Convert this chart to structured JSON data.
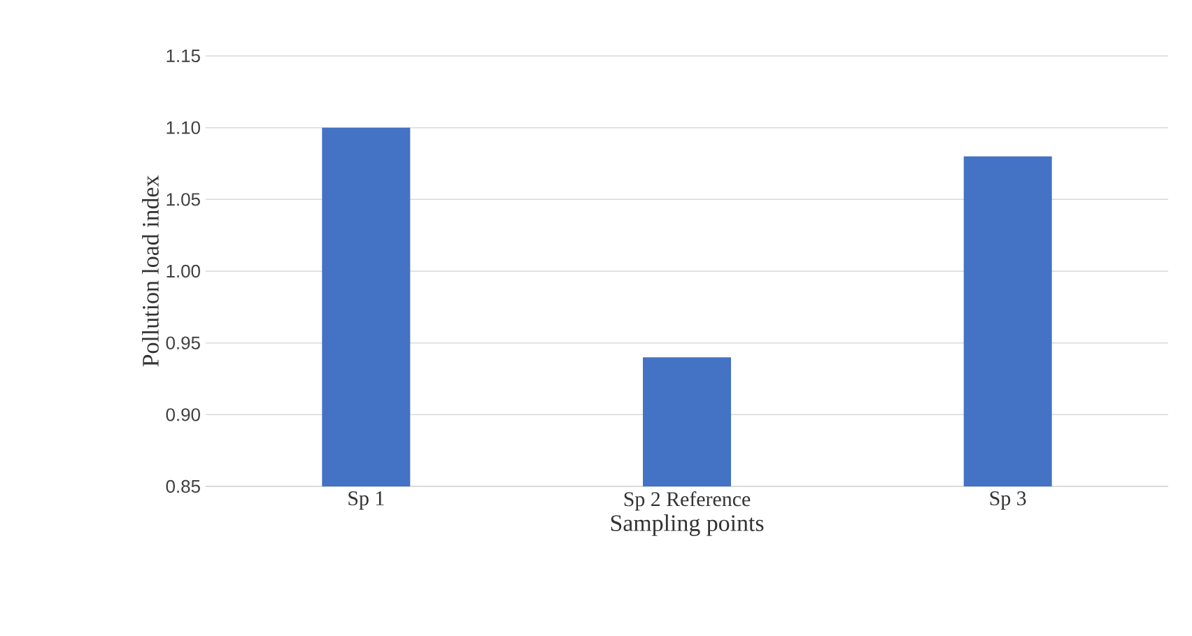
{
  "chart_data": {
    "type": "bar",
    "xlabel": "Sampling points",
    "ylabel": "Pollution load index",
    "categories": [
      "Sp 1",
      "Sp 2 Reference",
      "Sp 3"
    ],
    "values": [
      1.1,
      0.94,
      1.08
    ],
    "color": "#4472c4",
    "ylim": [
      0.85,
      1.15
    ],
    "yticks": [
      0.85,
      {
        "value": 0.9,
        "label": "0.90"
      },
      0.95,
      {
        "value": 1.0,
        "label": "1.00"
      },
      1.05,
      {
        "value": 1.1,
        "label": "1.10"
      },
      1.15
    ],
    "grid": "y"
  }
}
